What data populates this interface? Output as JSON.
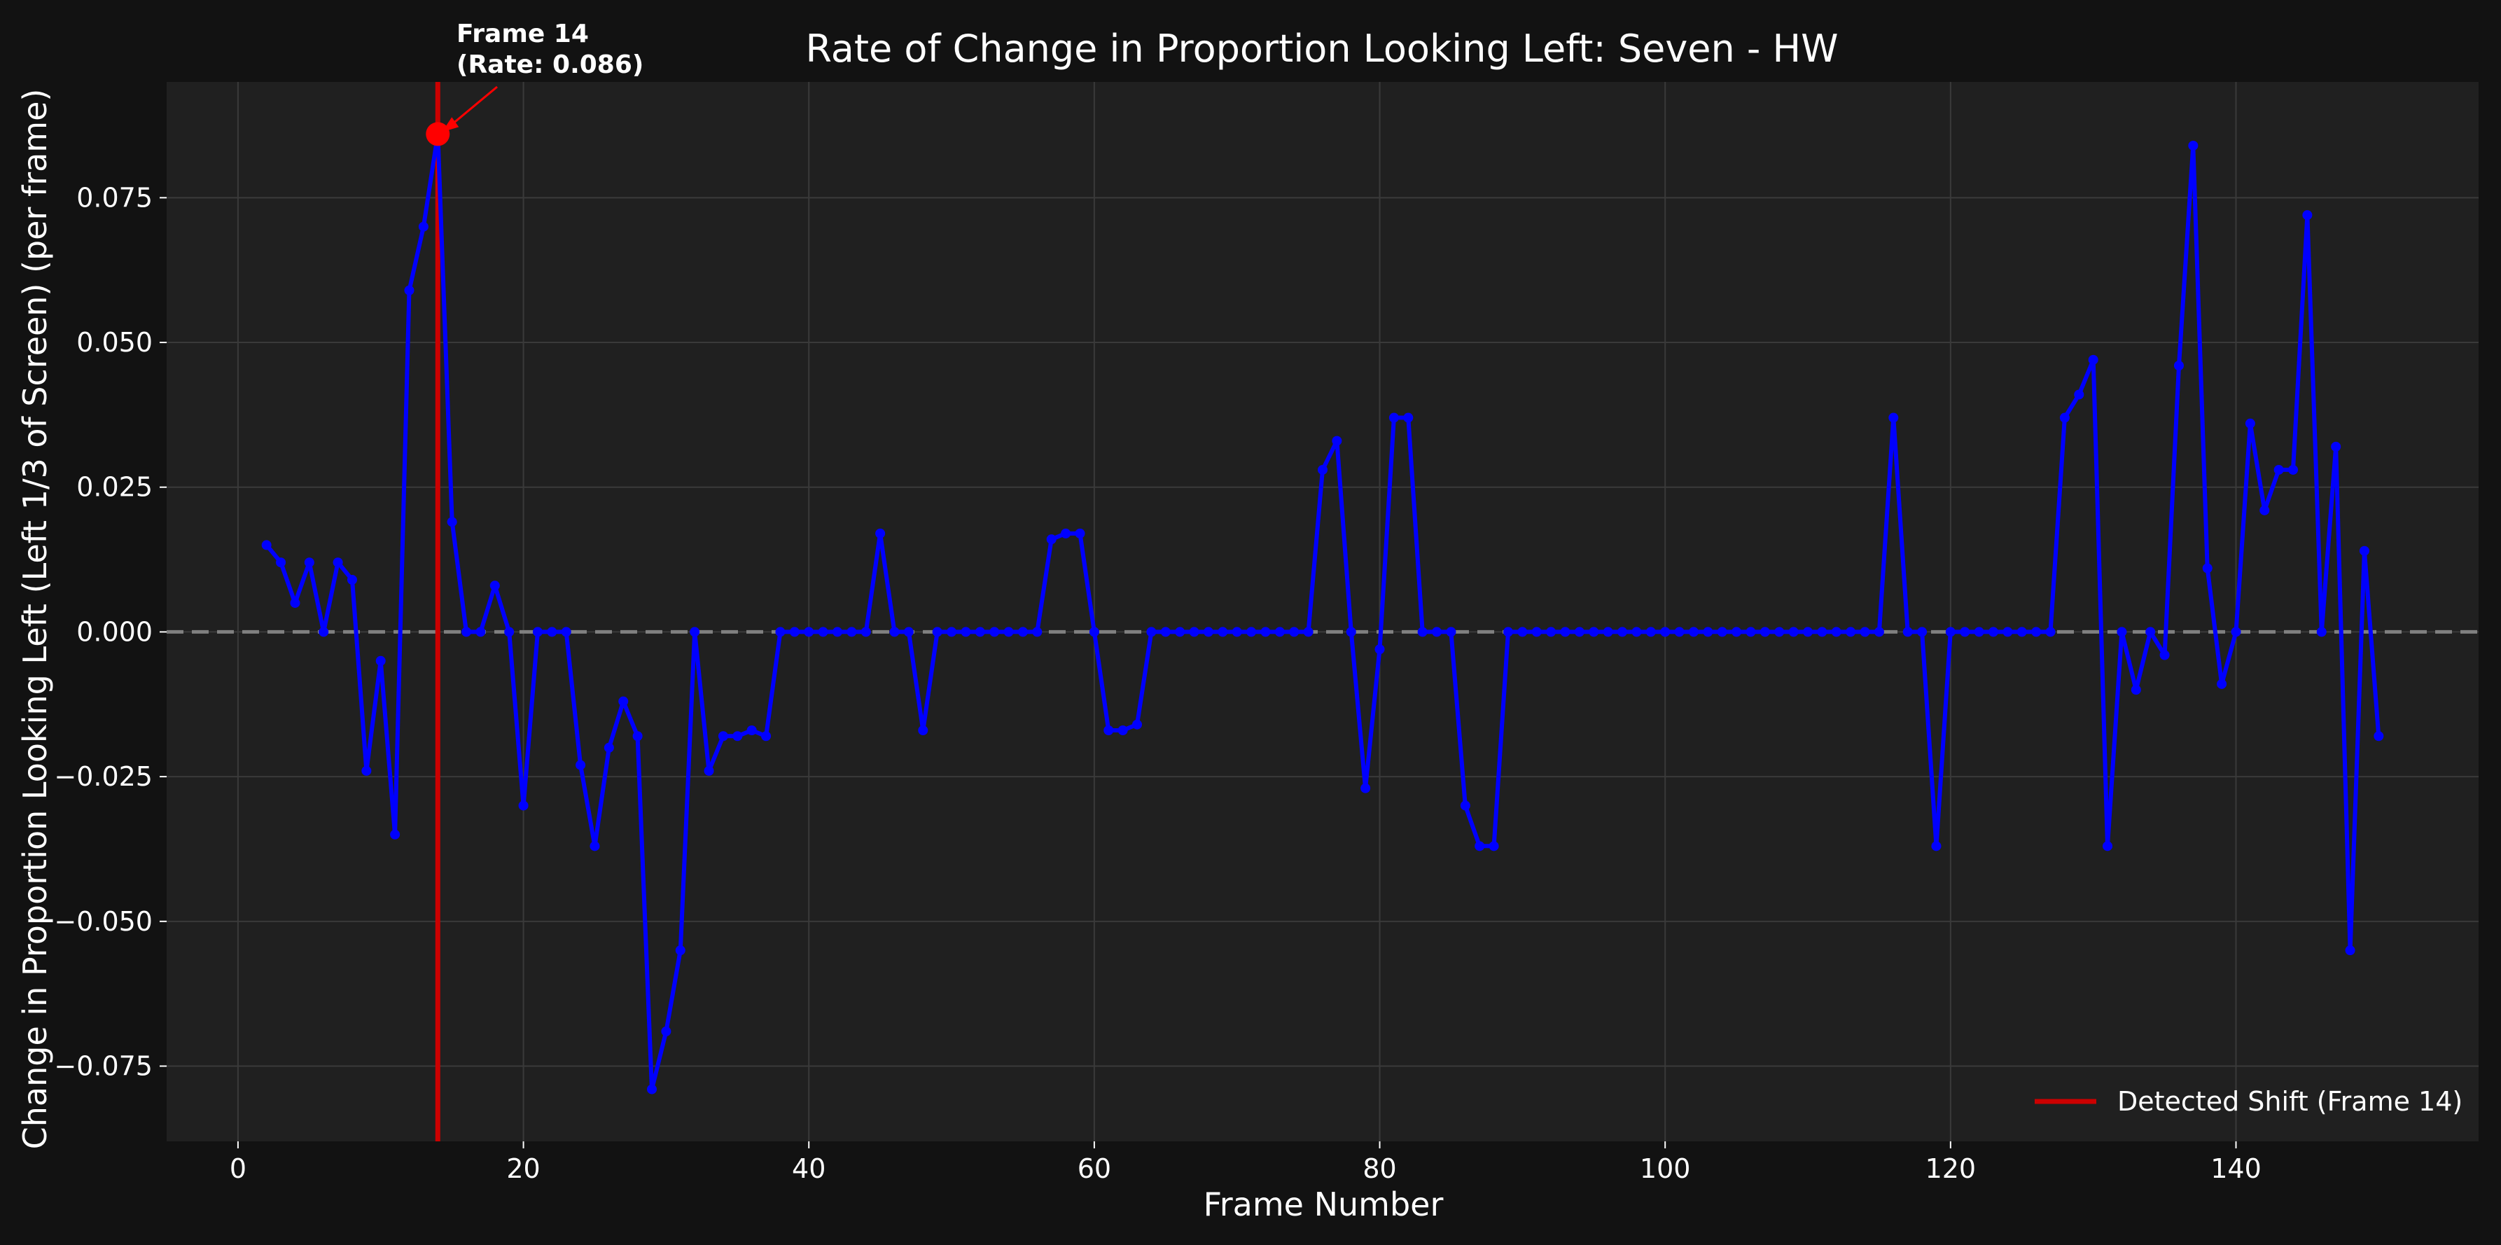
{
  "colors": {
    "figure_bg": "#121212",
    "axes_bg": "#202020",
    "text": "#ffffff",
    "grid": "#3a3a3a",
    "series": "#0000ff",
    "shift": "#cc0000",
    "peak": "#ff0000",
    "zero_line": "#808080"
  },
  "chart_data": {
    "type": "line",
    "title": "Rate of Change in Proportion Looking Left: Seven - HW",
    "xlabel": "Frame Number",
    "ylabel": "Change in Proportion Looking Left (Left 1/3 of Screen) (per frame)",
    "xlim": [
      -5,
      157
    ],
    "ylim": [
      -0.088,
      0.095
    ],
    "xticks": [
      0,
      20,
      40,
      60,
      80,
      100,
      120,
      140
    ],
    "xtick_labels": [
      "0",
      "20",
      "40",
      "60",
      "80",
      "100",
      "120",
      "140"
    ],
    "yticks": [
      -0.075,
      -0.05,
      -0.025,
      0.0,
      0.025,
      0.05,
      0.075
    ],
    "ytick_labels": [
      "−0.075",
      "−0.050",
      "−0.025",
      "0.000",
      "0.025",
      "0.050",
      "0.075"
    ],
    "grid": true,
    "zero_reference_line": 0.0,
    "series": [
      {
        "marker": "circle",
        "x": [
          2,
          3,
          4,
          5,
          6,
          7,
          8,
          9,
          10,
          11,
          12,
          13,
          14,
          15,
          16,
          17,
          18,
          19,
          20,
          21,
          22,
          23,
          24,
          25,
          26,
          27,
          28,
          29,
          30,
          31,
          32,
          33,
          34,
          35,
          36,
          37,
          38,
          39,
          40,
          41,
          42,
          43,
          44,
          45,
          46,
          47,
          48,
          49,
          50,
          51,
          52,
          53,
          54,
          55,
          56,
          57,
          58,
          59,
          60,
          61,
          62,
          63,
          64,
          65,
          66,
          67,
          68,
          69,
          70,
          71,
          72,
          73,
          74,
          75,
          76,
          77,
          78,
          79,
          80,
          81,
          82,
          83,
          84,
          85,
          86,
          87,
          88,
          89,
          90,
          91,
          92,
          93,
          94,
          95,
          96,
          97,
          98,
          99,
          100,
          101,
          102,
          103,
          104,
          105,
          106,
          107,
          108,
          109,
          110,
          111,
          112,
          113,
          114,
          115,
          116,
          117,
          118,
          119,
          120,
          121,
          122,
          123,
          124,
          125,
          126,
          127,
          128,
          129,
          130,
          131,
          132,
          133,
          134,
          135,
          136,
          137,
          138,
          139,
          140,
          141,
          142,
          143,
          144,
          145,
          146,
          147,
          148,
          149,
          150
        ],
        "y": [
          0.015,
          0.012,
          0.005,
          0.012,
          0.0,
          0.012,
          0.009,
          -0.024,
          -0.005,
          -0.035,
          0.059,
          0.07,
          0.086,
          0.019,
          0.0,
          0.0,
          0.008,
          0.0,
          -0.03,
          0.0,
          0.0,
          0.0,
          -0.023,
          -0.037,
          -0.02,
          -0.012,
          -0.018,
          -0.079,
          -0.069,
          -0.055,
          0.0,
          -0.024,
          -0.018,
          -0.018,
          -0.017,
          -0.018,
          0.0,
          0.0,
          0.0,
          0.0,
          0.0,
          0.0,
          0.0,
          0.017,
          0.0,
          0.0,
          -0.017,
          0.0,
          0.0,
          0.0,
          0.0,
          0.0,
          0.0,
          0.0,
          0.0,
          0.016,
          0.017,
          0.017,
          0.0,
          -0.017,
          -0.017,
          -0.016,
          0.0,
          0.0,
          0.0,
          0.0,
          0.0,
          0.0,
          0.0,
          0.0,
          0.0,
          0.0,
          0.0,
          0.0,
          0.028,
          0.033,
          0.0,
          -0.027,
          -0.003,
          0.037,
          0.037,
          0.0,
          0.0,
          0.0,
          -0.03,
          -0.037,
          -0.037,
          0.0,
          0.0,
          0.0,
          0.0,
          0.0,
          0.0,
          0.0,
          0.0,
          0.0,
          0.0,
          0.0,
          0.0,
          0.0,
          0.0,
          0.0,
          0.0,
          0.0,
          0.0,
          0.0,
          0.0,
          0.0,
          0.0,
          0.0,
          0.0,
          0.0,
          0.0,
          0.0,
          0.037,
          0.0,
          0.0,
          -0.037,
          0.0,
          0.0,
          0.0,
          0.0,
          0.0,
          0.0,
          0.0,
          0.0,
          0.037,
          0.041,
          0.047,
          -0.037,
          0.0,
          -0.01,
          0.0,
          -0.004,
          0.046,
          0.084,
          0.011,
          -0.009,
          0.0,
          0.036,
          0.021,
          0.028,
          0.028,
          0.072,
          0.0,
          0.032,
          -0.055,
          0.014,
          -0.018
        ]
      }
    ],
    "detected_shift": {
      "frame": 14
    },
    "peak": {
      "frame": 14,
      "rate": 0.086
    },
    "annotation": {
      "line1": "Frame 14",
      "line2": "(Rate: 0.086)"
    },
    "legend": {
      "position": "bottom-right",
      "entries": [
        "Detected Shift (Frame 14)"
      ]
    }
  }
}
